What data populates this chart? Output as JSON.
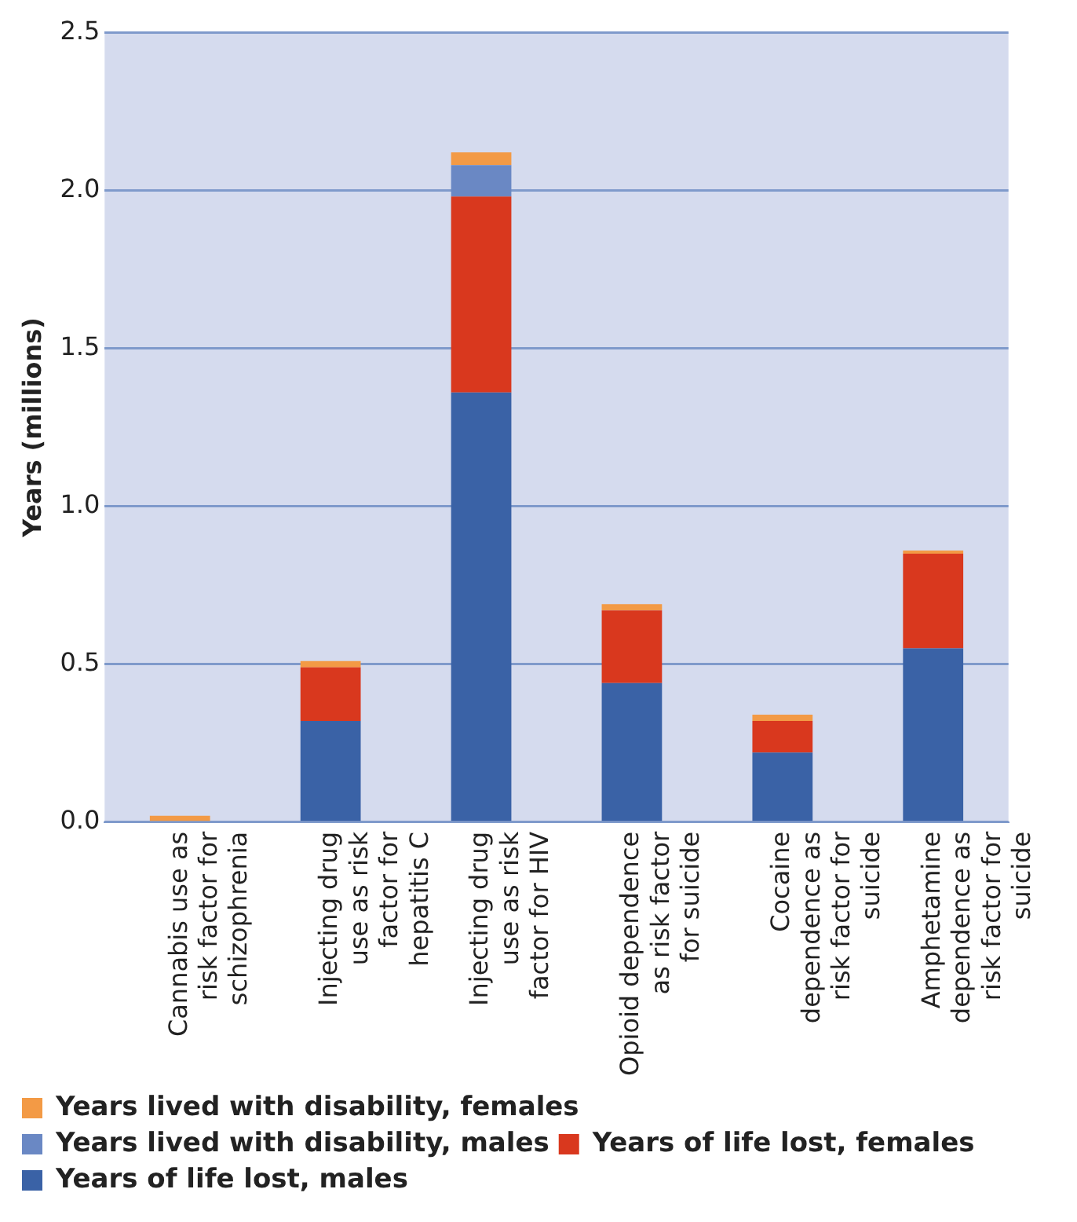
{
  "chart_data": {
    "type": "bar",
    "stacked": true,
    "ylabel": "Years (millions)",
    "categories": [
      "Cannabis use as risk factor for schizophrenia",
      "Injecting drug use as risk factor for hepatitis C",
      "Injecting drug use as risk factor for HIV",
      "Opioid dependence as risk factor for suicide",
      "Cocaine dependence as risk factor for suicide",
      "Amphetamine dependence as risk factor for suicide"
    ],
    "series": [
      {
        "name": "Years of life lost, males",
        "color": "#3a62a6",
        "values": [
          0,
          0.32,
          1.36,
          0.44,
          0.22,
          0.55
        ]
      },
      {
        "name": "Years of life lost, females",
        "color": "#d9381e",
        "values": [
          0,
          0.17,
          0.62,
          0.23,
          0.1,
          0.3
        ]
      },
      {
        "name": "Years lived with disability, males",
        "color": "#6a88c4",
        "values": [
          0,
          0,
          0.1,
          0,
          0,
          0
        ]
      },
      {
        "name": "Years lived with disability, females",
        "color": "#f39a45",
        "values": [
          0.02,
          0.02,
          0.04,
          0.02,
          0.02,
          0.01
        ]
      }
    ],
    "ylim": [
      0,
      2.5
    ],
    "yticks": [
      {
        "value": 0,
        "label": "0.0"
      },
      {
        "value": 0.5,
        "label": "0.5"
      },
      {
        "value": 1,
        "label": "1.0"
      },
      {
        "value": 1.5,
        "label": "1.5"
      },
      {
        "value": 2,
        "label": "2.0"
      },
      {
        "value": 2.5,
        "label": "2.5"
      }
    ],
    "grid": "y",
    "legend": "bottom"
  }
}
